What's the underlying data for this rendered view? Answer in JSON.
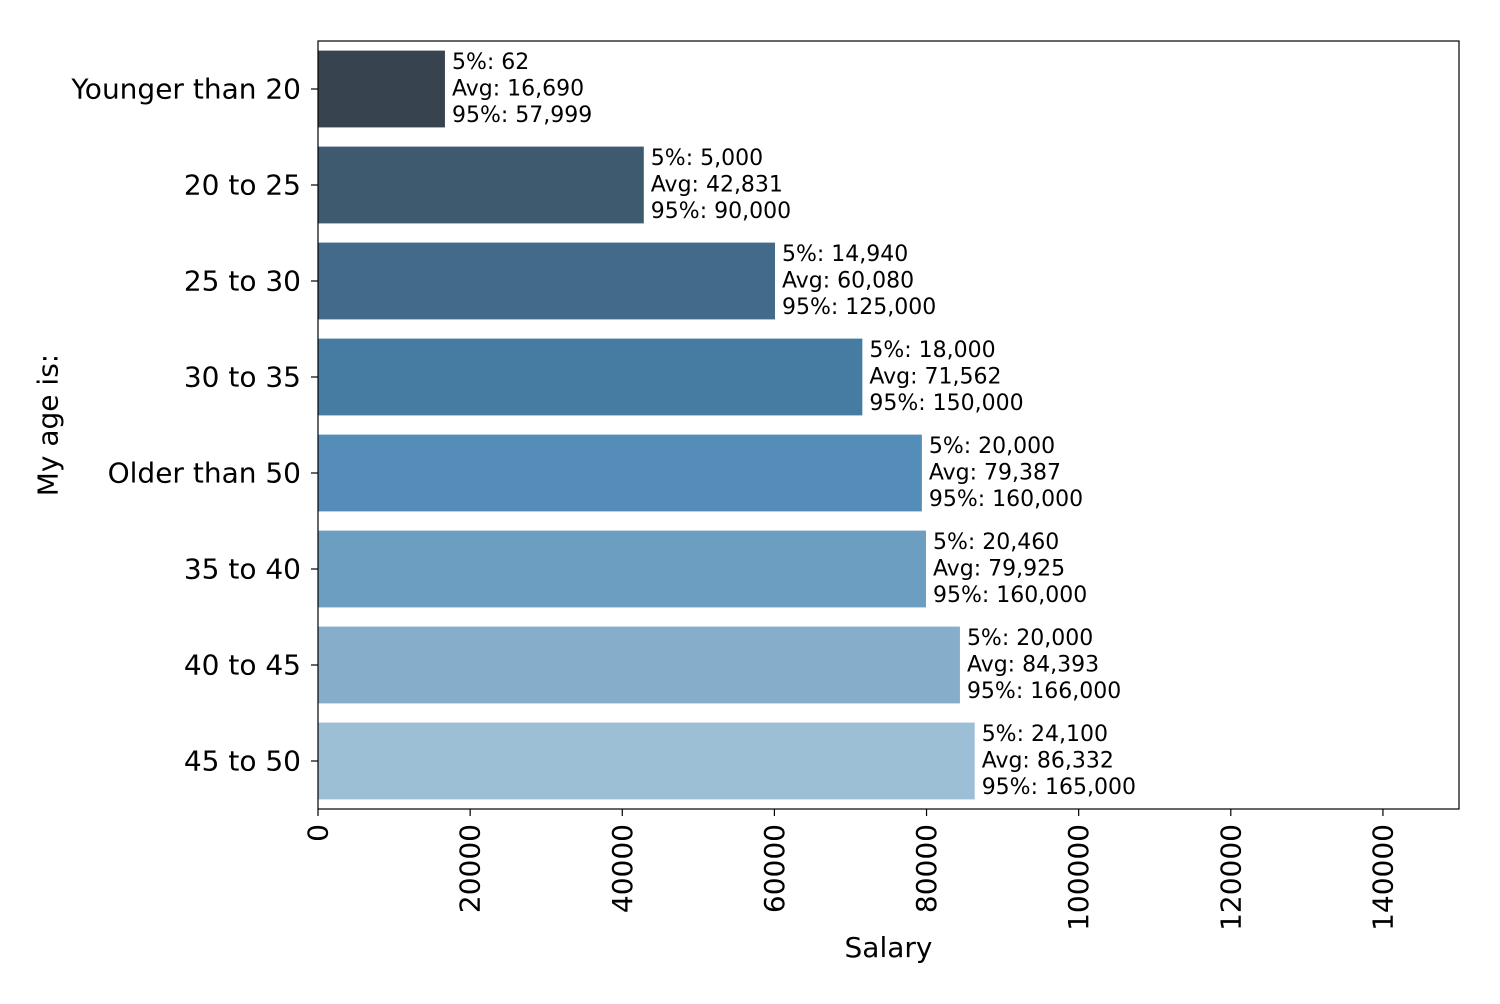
{
  "chart_data": {
    "type": "bar",
    "orientation": "horizontal",
    "xlabel": "Salary",
    "ylabel": "My age is:",
    "xlim": [
      0,
      150000
    ],
    "xticks": [
      0,
      20000,
      40000,
      60000,
      80000,
      100000,
      120000,
      140000
    ],
    "xtick_labels": [
      "0",
      "20000",
      "40000",
      "60000",
      "80000",
      "100000",
      "120000",
      "140000"
    ],
    "grid": false,
    "categories": [
      "Younger than 20",
      "20 to 25",
      "25 to 30",
      "30 to 35",
      "Older than 50",
      "35 to 40",
      "40 to 45",
      "45 to 50"
    ],
    "values": [
      16690,
      42831,
      60080,
      71562,
      79387,
      79925,
      84393,
      86332
    ],
    "colors": [
      "#37444f",
      "#3e5a6f",
      "#436a88",
      "#467ca1",
      "#548db8",
      "#6b9ec0",
      "#86aeca",
      "#9dbfd5"
    ],
    "annotations": [
      [
        "5%: 62",
        "Avg: 16,690",
        "95%: 57,999"
      ],
      [
        "5%: 5,000",
        "Avg: 42,831",
        "95%: 90,000"
      ],
      [
        "5%: 14,940",
        "Avg: 60,080",
        "95%: 125,000"
      ],
      [
        "5%: 18,000",
        "Avg: 71,562",
        "95%: 150,000"
      ],
      [
        "5%: 20,000",
        "Avg: 79,387",
        "95%: 160,000"
      ],
      [
        "5%: 20,460",
        "Avg: 79,925",
        "95%: 160,000"
      ],
      [
        "5%: 20,000",
        "Avg: 84,393",
        "95%: 166,000"
      ],
      [
        "5%: 24,100",
        "Avg: 86,332",
        "95%: 165,000"
      ]
    ]
  }
}
